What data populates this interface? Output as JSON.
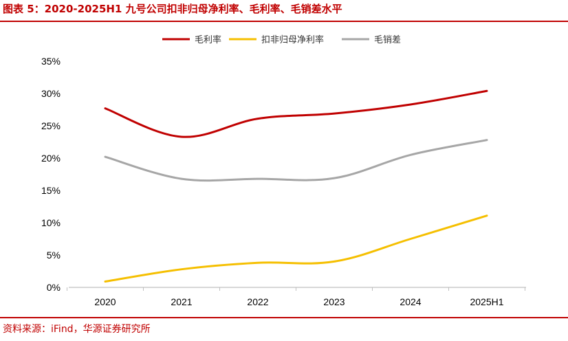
{
  "title": "图表 5：2020-2025H1 九号公司扣非归母净利率、毛利率、毛销差水平",
  "source": "资料来源：iFind，华源证券研究所",
  "chart_data": {
    "type": "line",
    "categories": [
      "2020",
      "2021",
      "2022",
      "2023",
      "2024",
      "2025H1"
    ],
    "ylim": [
      0,
      35
    ],
    "yticks": [
      "0%",
      "5%",
      "10%",
      "15%",
      "20%",
      "25%",
      "30%",
      "35%"
    ],
    "grid": false,
    "legend_position": "top",
    "series": [
      {
        "name": "毛利率",
        "color": "#c00000",
        "values": [
          27.7,
          23.3,
          26.1,
          26.9,
          28.3,
          30.4
        ]
      },
      {
        "name": "扣非归母净利率",
        "color": "#f5bf00",
        "values": [
          0.9,
          2.8,
          3.8,
          4.0,
          7.5,
          11.1
        ]
      },
      {
        "name": "毛销差",
        "color": "#a6a6a6",
        "values": [
          20.2,
          16.8,
          16.8,
          16.9,
          20.5,
          22.8
        ]
      }
    ]
  }
}
